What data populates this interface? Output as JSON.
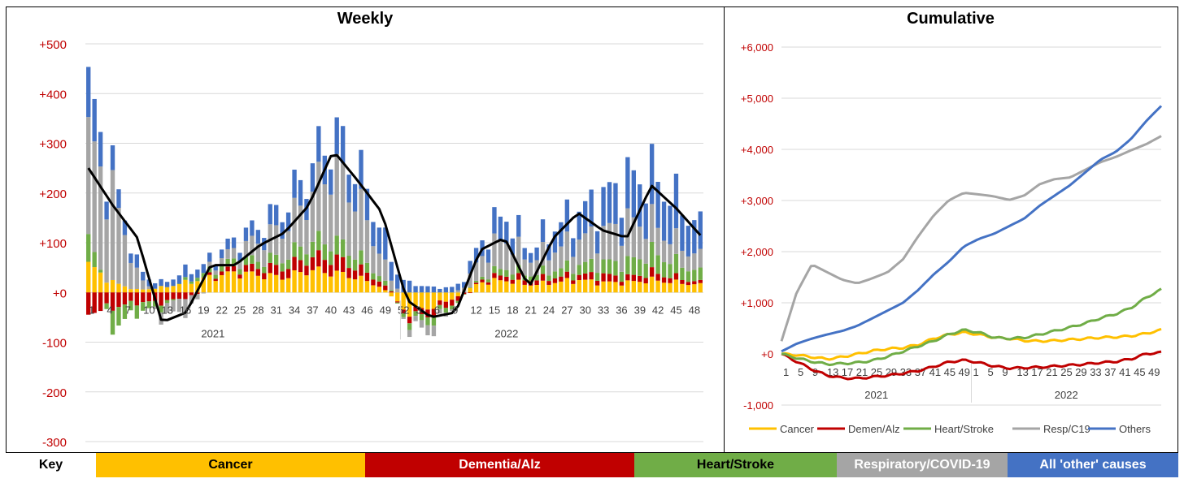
{
  "weekly": {
    "title": "Weekly",
    "ylim": [
      -300,
      500
    ],
    "yticks": [
      500,
      400,
      300,
      200,
      100,
      0,
      -100,
      -200,
      -300
    ],
    "ytick_labels": [
      "+500",
      "+400",
      "+300",
      "+200",
      "+100",
      "+0",
      "-100",
      "-200",
      "-300"
    ],
    "xtick_labels": [
      "1",
      "4",
      "7",
      "10",
      "13",
      "16",
      "19",
      "22",
      "25",
      "28",
      "31",
      "34",
      "37",
      "40",
      "43",
      "46",
      "49",
      "52",
      "3",
      "6",
      "9",
      "12",
      "15",
      "18",
      "21",
      "24",
      "27",
      "30",
      "33",
      "36",
      "39",
      "42",
      "45",
      "48"
    ],
    "year_labels": [
      "2021",
      "2022"
    ]
  },
  "cumulative": {
    "title": "Cumulative",
    "ylim": [
      -1000,
      6000
    ],
    "yticks": [
      6000,
      5000,
      4000,
      3000,
      2000,
      1000,
      0,
      -1000
    ],
    "ytick_labels": [
      "+6,000",
      "+5,000",
      "+4,000",
      "+3,000",
      "+2,000",
      "+1,000",
      "+0",
      "-1,000"
    ],
    "xtick_labels": [
      "1",
      "5",
      "9",
      "13",
      "17",
      "21",
      "25",
      "29",
      "33",
      "37",
      "41",
      "45",
      "49",
      "1",
      "5",
      "9",
      "13",
      "17",
      "21",
      "25",
      "29",
      "33",
      "37",
      "41",
      "45",
      "49"
    ],
    "year_labels": [
      "2021",
      "2022"
    ],
    "legend": [
      "Cancer",
      "Demen/Alz",
      "Heart/Stroke",
      "Resp/C19",
      "Others"
    ]
  },
  "key": {
    "label": "Key",
    "items": [
      "Cancer",
      "Dementia/Alz",
      "Heart/Stroke",
      "Respiratory/COVID-19",
      "All 'other' causes"
    ]
  },
  "colors": {
    "cancer": "#FFC000",
    "dementia": "#C00000",
    "heart": "#70AD47",
    "resp": "#A5A5A5",
    "others": "#4472C4",
    "line": "#000000",
    "tick": "#C00000"
  },
  "chart_data": [
    {
      "type": "bar",
      "title": "Weekly",
      "stacked": true,
      "ylim": [
        -300,
        500
      ],
      "x": [
        "2021-W1",
        "2021-W5",
        "2021-W9",
        "2021-W13",
        "2021-W17",
        "2021-W21",
        "2021-W25",
        "2021-W29",
        "2021-W33",
        "2021-W37",
        "2021-W41",
        "2021-W45",
        "2021-W49",
        "2022-W1",
        "2022-W5",
        "2022-W9",
        "2022-W13",
        "2022-W17",
        "2022-W21",
        "2022-W25",
        "2022-W29",
        "2022-W33",
        "2022-W37",
        "2022-W41",
        "2022-W45",
        "2022-W49"
      ],
      "series": [
        {
          "name": "Cancer",
          "values": [
            55,
            20,
            5,
            10,
            20,
            30,
            40,
            35,
            30,
            45,
            40,
            30,
            10,
            -40,
            -30,
            -10,
            20,
            25,
            15,
            20,
            25,
            20,
            20,
            25,
            20,
            15
          ]
        },
        {
          "name": "Dementia/Alz",
          "values": [
            -40,
            -30,
            -20,
            -20,
            -10,
            5,
            10,
            15,
            20,
            25,
            30,
            20,
            10,
            -10,
            -15,
            -10,
            5,
            10,
            10,
            10,
            10,
            15,
            10,
            15,
            10,
            5
          ]
        },
        {
          "name": "Heart/Stroke",
          "values": [
            50,
            -40,
            -20,
            -10,
            5,
            10,
            15,
            15,
            20,
            30,
            35,
            25,
            10,
            -10,
            -15,
            -5,
            5,
            15,
            10,
            15,
            20,
            25,
            30,
            40,
            30,
            20
          ]
        },
        {
          "name": "Resp/C19",
          "values": [
            210,
            180,
            30,
            -20,
            -30,
            10,
            20,
            40,
            60,
            90,
            150,
            110,
            40,
            -10,
            -20,
            0,
            40,
            60,
            30,
            40,
            50,
            60,
            80,
            60,
            40,
            30
          ]
        },
        {
          "name": "Others",
          "values": [
            90,
            40,
            20,
            10,
            20,
            15,
            20,
            30,
            40,
            55,
            65,
            65,
            55,
            20,
            10,
            10,
            30,
            50,
            20,
            45,
            55,
            70,
            85,
            95,
            85,
            60
          ]
        },
        {
          "name": "Total (smoothed)",
          "type": "line",
          "values": [
            250,
            175,
            110,
            -60,
            -40,
            55,
            55,
            95,
            120,
            175,
            285,
            225,
            160,
            -15,
            -50,
            -40,
            85,
            110,
            10,
            110,
            160,
            125,
            110,
            215,
            170,
            115
          ]
        }
      ]
    },
    {
      "type": "line",
      "title": "Cumulative",
      "ylim": [
        -1000,
        6000
      ],
      "x": [
        "2021-W1",
        "2021-W5",
        "2021-W9",
        "2021-W13",
        "2021-W17",
        "2021-W21",
        "2021-W25",
        "2021-W29",
        "2021-W33",
        "2021-W37",
        "2021-W41",
        "2021-W45",
        "2021-W49",
        "2022-W1",
        "2022-W5",
        "2022-W9",
        "2022-W13",
        "2022-W17",
        "2022-W21",
        "2022-W25",
        "2022-W29",
        "2022-W33",
        "2022-W37",
        "2022-W41",
        "2022-W45",
        "2022-W49"
      ],
      "series": [
        {
          "name": "Cancer",
          "values": [
            0,
            -20,
            -60,
            -100,
            -60,
            0,
            60,
            100,
            120,
            180,
            300,
            380,
            420,
            380,
            320,
            300,
            260,
            250,
            260,
            280,
            300,
            320,
            330,
            350,
            400,
            470
          ]
        },
        {
          "name": "Demen/Alz",
          "values": [
            0,
            -150,
            -300,
            -420,
            -470,
            -480,
            -450,
            -420,
            -380,
            -330,
            -250,
            -160,
            -120,
            -170,
            -240,
            -280,
            -270,
            -260,
            -240,
            -220,
            -200,
            -170,
            -150,
            -100,
            0,
            30
          ]
        },
        {
          "name": "Heart/Stroke",
          "values": [
            0,
            -80,
            -150,
            -200,
            -190,
            -170,
            -130,
            -50,
            50,
            150,
            250,
            380,
            470,
            420,
            320,
            300,
            320,
            380,
            450,
            520,
            600,
            700,
            780,
            900,
            1100,
            1260
          ]
        },
        {
          "name": "Resp/C19",
          "values": [
            250,
            1200,
            1750,
            1600,
            1450,
            1380,
            1480,
            1600,
            1850,
            2300,
            2700,
            3000,
            3150,
            3120,
            3080,
            3010,
            3100,
            3320,
            3420,
            3450,
            3600,
            3750,
            3850,
            3980,
            4100,
            4260
          ]
        },
        {
          "name": "Others",
          "values": [
            50,
            200,
            300,
            380,
            450,
            550,
            700,
            850,
            1000,
            1250,
            1550,
            1800,
            2100,
            2250,
            2350,
            2500,
            2650,
            2900,
            3100,
            3300,
            3550,
            3800,
            3950,
            4200,
            4550,
            4850
          ]
        }
      ]
    }
  ]
}
